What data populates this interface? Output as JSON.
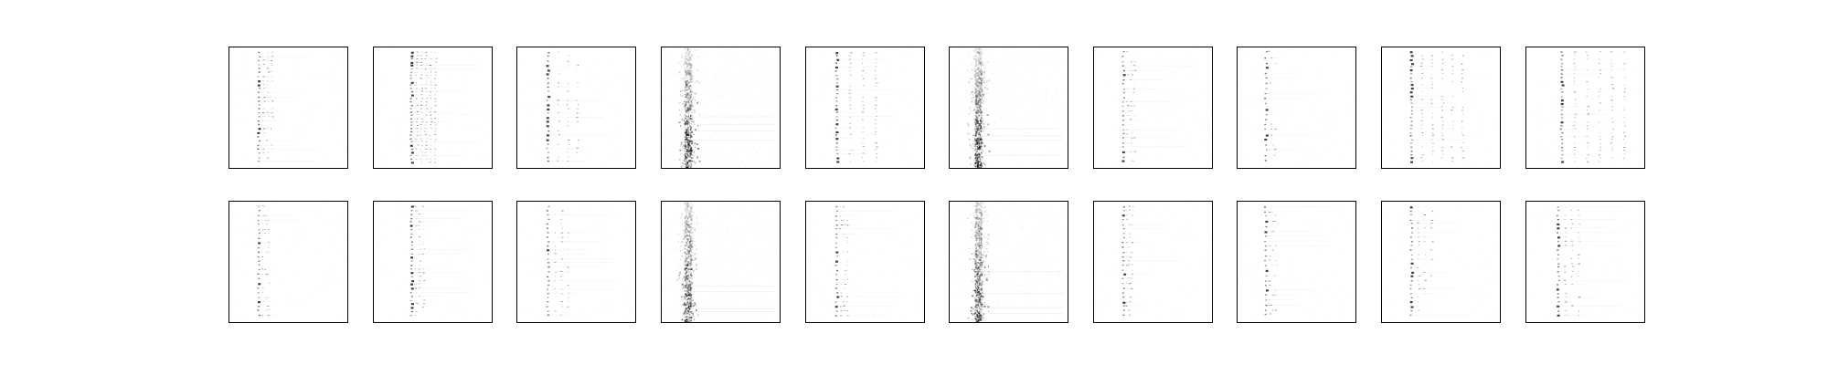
{
  "figure": {
    "rows": 2,
    "cols": 10,
    "colors": {
      "background": "#ffffff",
      "panel_border": "#000000",
      "ink": "#000000"
    },
    "panels": [
      {
        "id": "r1c1",
        "style": "sparse-column",
        "x": 0.25,
        "density": 0.7,
        "spread": 0.06
      },
      {
        "id": "r1c2",
        "style": "dense-columns",
        "x": 0.32,
        "density": 1.0,
        "spread": 0.12
      },
      {
        "id": "r1c3",
        "style": "sparse-column",
        "x": 0.26,
        "density": 0.6,
        "spread": 0.2
      },
      {
        "id": "r1c4",
        "style": "vertical-band",
        "x": 0.22,
        "density": 0.9,
        "spread": 0.04
      },
      {
        "id": "r1c5",
        "style": "sparse-column",
        "x": 0.26,
        "density": 0.8,
        "spread": 0.28
      },
      {
        "id": "r1c6",
        "style": "vertical-band",
        "x": 0.24,
        "density": 1.0,
        "spread": 0.06
      },
      {
        "id": "r1c7",
        "style": "sparse-column",
        "x": 0.25,
        "density": 0.5,
        "spread": 0.04
      },
      {
        "id": "r1c8",
        "style": "sparse-column",
        "x": 0.24,
        "density": 0.35,
        "spread": 0.02
      },
      {
        "id": "r1c9",
        "style": "dense-columns",
        "x": 0.25,
        "density": 0.85,
        "spread": 0.35
      },
      {
        "id": "r1c10",
        "style": "dense-columns",
        "x": 0.3,
        "density": 0.85,
        "spread": 0.45
      },
      {
        "id": "r2c1",
        "style": "sparse-column",
        "x": 0.25,
        "density": 0.55,
        "spread": 0.03
      },
      {
        "id": "r2c2",
        "style": "sparse-column",
        "x": 0.32,
        "density": 0.75,
        "spread": 0.05
      },
      {
        "id": "r2c3",
        "style": "sparse-column",
        "x": 0.26,
        "density": 0.6,
        "spread": 0.12
      },
      {
        "id": "r2c4",
        "style": "vertical-band",
        "x": 0.22,
        "density": 0.85,
        "spread": 0.03
      },
      {
        "id": "r2c5",
        "style": "sparse-column",
        "x": 0.26,
        "density": 0.55,
        "spread": 0.04
      },
      {
        "id": "r2c6",
        "style": "vertical-band",
        "x": 0.24,
        "density": 0.9,
        "spread": 0.05
      },
      {
        "id": "r2c7",
        "style": "sparse-column",
        "x": 0.25,
        "density": 0.55,
        "spread": 0.02
      },
      {
        "id": "r2c8",
        "style": "sparse-column",
        "x": 0.24,
        "density": 0.4,
        "spread": 0.03
      },
      {
        "id": "r2c9",
        "style": "sparse-column",
        "x": 0.25,
        "density": 0.6,
        "spread": 0.12
      },
      {
        "id": "r2c10",
        "style": "sparse-column",
        "x": 0.27,
        "density": 0.6,
        "spread": 0.12
      }
    ]
  }
}
